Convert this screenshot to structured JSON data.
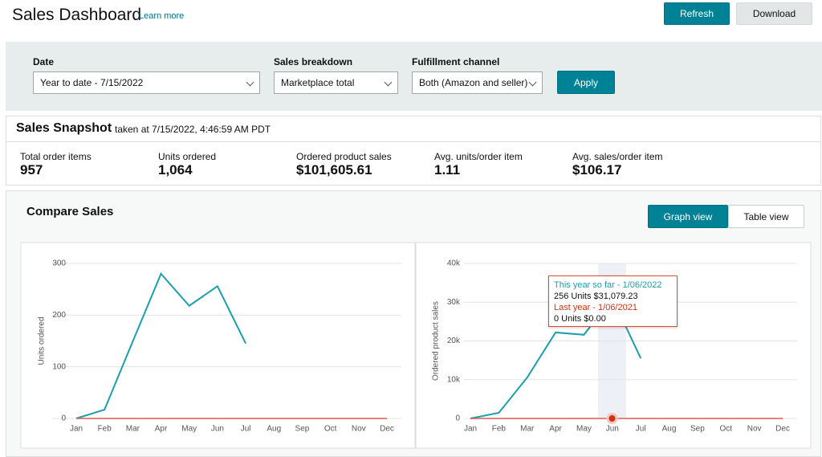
{
  "header": {
    "title": "Sales Dashboard",
    "learn_more": "Learn more",
    "buttons": [
      "Refresh",
      "Download"
    ]
  },
  "filters": [
    {
      "label": "Date",
      "value": "Year to date - 7/15/2022"
    },
    {
      "label": "Sales breakdown",
      "value": "Marketplace total"
    },
    {
      "label": "Fulfillment channel",
      "value": "Both (Amazon and seller)"
    }
  ],
  "apply": "Apply",
  "snapshot": {
    "title": "Sales Snapshot",
    "taken_at": "taken at 7/15/2022, 4:46:59 AM PDT",
    "metrics": [
      {
        "label": "Total order items",
        "value": "957"
      },
      {
        "label": "Units ordered",
        "value": "1,064"
      },
      {
        "label": "Ordered product sales",
        "value": "$101,605.61"
      },
      {
        "label": "Avg. units/order item",
        "value": "1.11"
      },
      {
        "label": "Avg. sales/order item",
        "value": "$106.17"
      }
    ]
  },
  "compare": {
    "title": "Compare Sales",
    "views": [
      "Graph view",
      "Table view"
    ]
  },
  "chart_data": [
    {
      "type": "line",
      "y_label": "Units ordered",
      "categories": [
        "Jan",
        "Feb",
        "Mar",
        "Apr",
        "May",
        "Jun",
        "Jul",
        "Aug",
        "Sep",
        "Oct",
        "Nov",
        "Dec"
      ],
      "ylim": [
        0,
        300
      ],
      "yticks": [
        0,
        100,
        200,
        300
      ],
      "grid": true,
      "series": [
        {
          "color": "#1a9fad",
          "values": [
            0,
            17,
            149,
            280,
            218,
            256,
            145,
            null,
            null,
            null,
            null,
            null
          ]
        },
        {
          "color": "#e25c4b",
          "values": [
            0,
            0,
            0,
            0,
            0,
            0,
            0,
            0,
            0,
            0,
            0,
            0
          ]
        }
      ]
    },
    {
      "type": "line",
      "y_label": "Ordered product sales",
      "categories": [
        "Jan",
        "Feb",
        "Mar",
        "Apr",
        "May",
        "Jun",
        "Jul",
        "Aug",
        "Sep",
        "Oct",
        "Nov",
        "Dec"
      ],
      "ylim": [
        0,
        40000
      ],
      "yticks": [
        0,
        {
          "value": 10000,
          "label": "10k"
        },
        {
          "value": 20000,
          "label": "20k"
        },
        {
          "value": 30000,
          "label": "30k"
        },
        {
          "value": 40000,
          "label": "40k"
        }
      ],
      "grid": true,
      "series": [
        {
          "color": "#1a9fad",
          "values": [
            0,
            1450,
            10570,
            22180,
            21600,
            31079.23,
            15540,
            null,
            null,
            null,
            null,
            null
          ]
        },
        {
          "color": "#e25c4b",
          "values": [
            0,
            0,
            0,
            0,
            0,
            0,
            0,
            0,
            0,
            0,
            0,
            0
          ]
        }
      ],
      "tooltip": [
        "This year so far - 1/06/2022",
        "256 Units $31,079.23",
        "Last year - 1/06/2021",
        "0 Units $0.00"
      ]
    }
  ]
}
